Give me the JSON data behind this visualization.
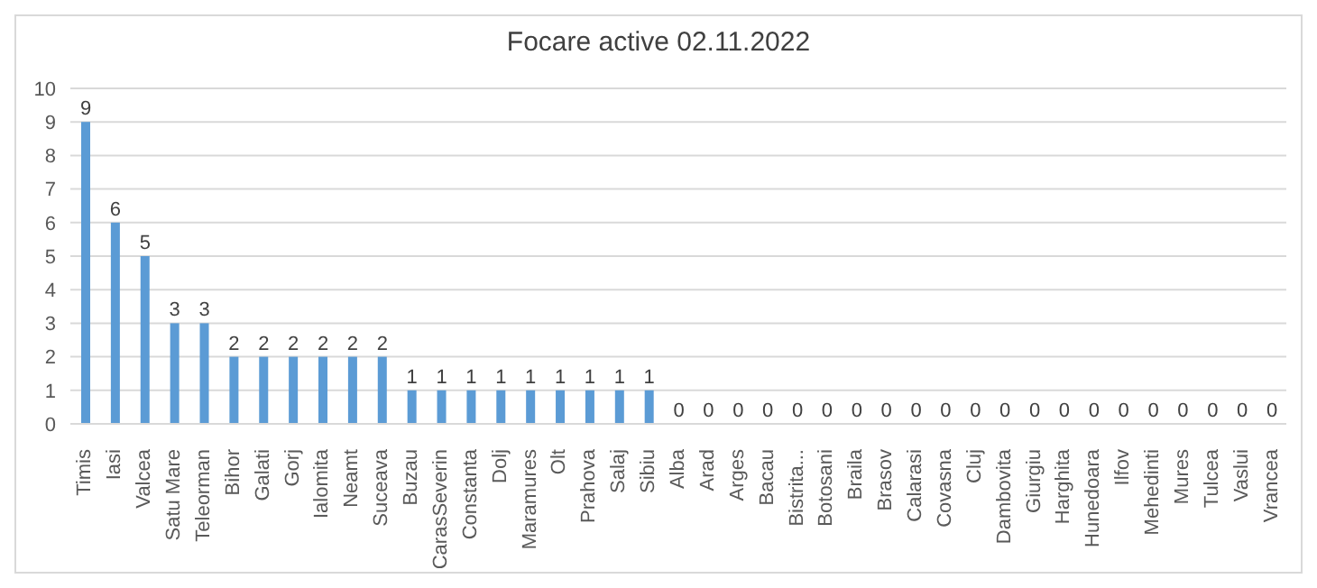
{
  "chart_data": {
    "type": "bar",
    "title": "Focare active 02.11.2022",
    "categories": [
      "Timis",
      "Iasi",
      "Valcea",
      "Satu Mare",
      "Teleorman",
      "Bihor",
      "Galati",
      "Gorj",
      "Ialomita",
      "Neamt",
      "Suceava",
      "Buzau",
      "CarasSeverin",
      "Constanta",
      "Dolj",
      "Maramures",
      "Olt",
      "Prahova",
      "Salaj",
      "Sibiu",
      "Alba",
      "Arad",
      "Arges",
      "Bacau",
      "Bistrita...",
      "Botosani",
      "Braila",
      "Brasov",
      "Calarasi",
      "Covasna",
      "Cluj",
      "Dambovita",
      "Giurgiu",
      "Harghita",
      "Hunedoara",
      "Ilfov",
      "Mehedinti",
      "Mures",
      "Tulcea",
      "Vaslui",
      "Vrancea"
    ],
    "values": [
      9,
      6,
      5,
      3,
      3,
      2,
      2,
      2,
      2,
      2,
      2,
      1,
      1,
      1,
      1,
      1,
      1,
      1,
      1,
      1,
      0,
      0,
      0,
      0,
      0,
      0,
      0,
      0,
      0,
      0,
      0,
      0,
      0,
      0,
      0,
      0,
      0,
      0,
      0,
      0,
      0
    ],
    "color": "#5b9bd5",
    "ylim": [
      0,
      10
    ],
    "yticks": [
      0,
      1,
      2,
      3,
      4,
      5,
      6,
      7,
      8,
      9,
      10
    ],
    "grid": "y",
    "data_labels": true
  }
}
